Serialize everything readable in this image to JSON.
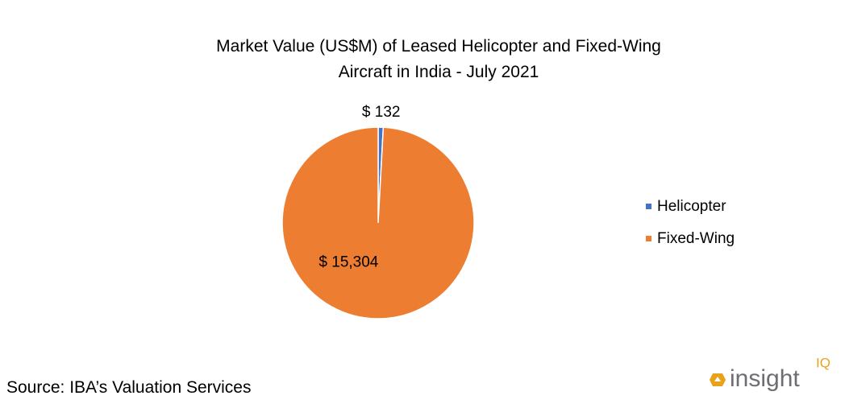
{
  "chart_data": {
    "type": "pie",
    "title": "Market Value (US$M) of Leased Helicopter and Fixed-Wing Aircraft in India - July 2021",
    "categories": [
      "Helicopter",
      "Fixed-Wing"
    ],
    "values": [
      132,
      15304
    ],
    "value_labels": [
      "$ 132",
      "$ 15,304"
    ],
    "colors": [
      "#4472c4",
      "#ed7d31"
    ],
    "legend": "right"
  },
  "footer": {
    "source": "Source: IBA’s Valuation Services",
    "logo": {
      "text": "insight",
      "superscript": "IQ"
    }
  }
}
